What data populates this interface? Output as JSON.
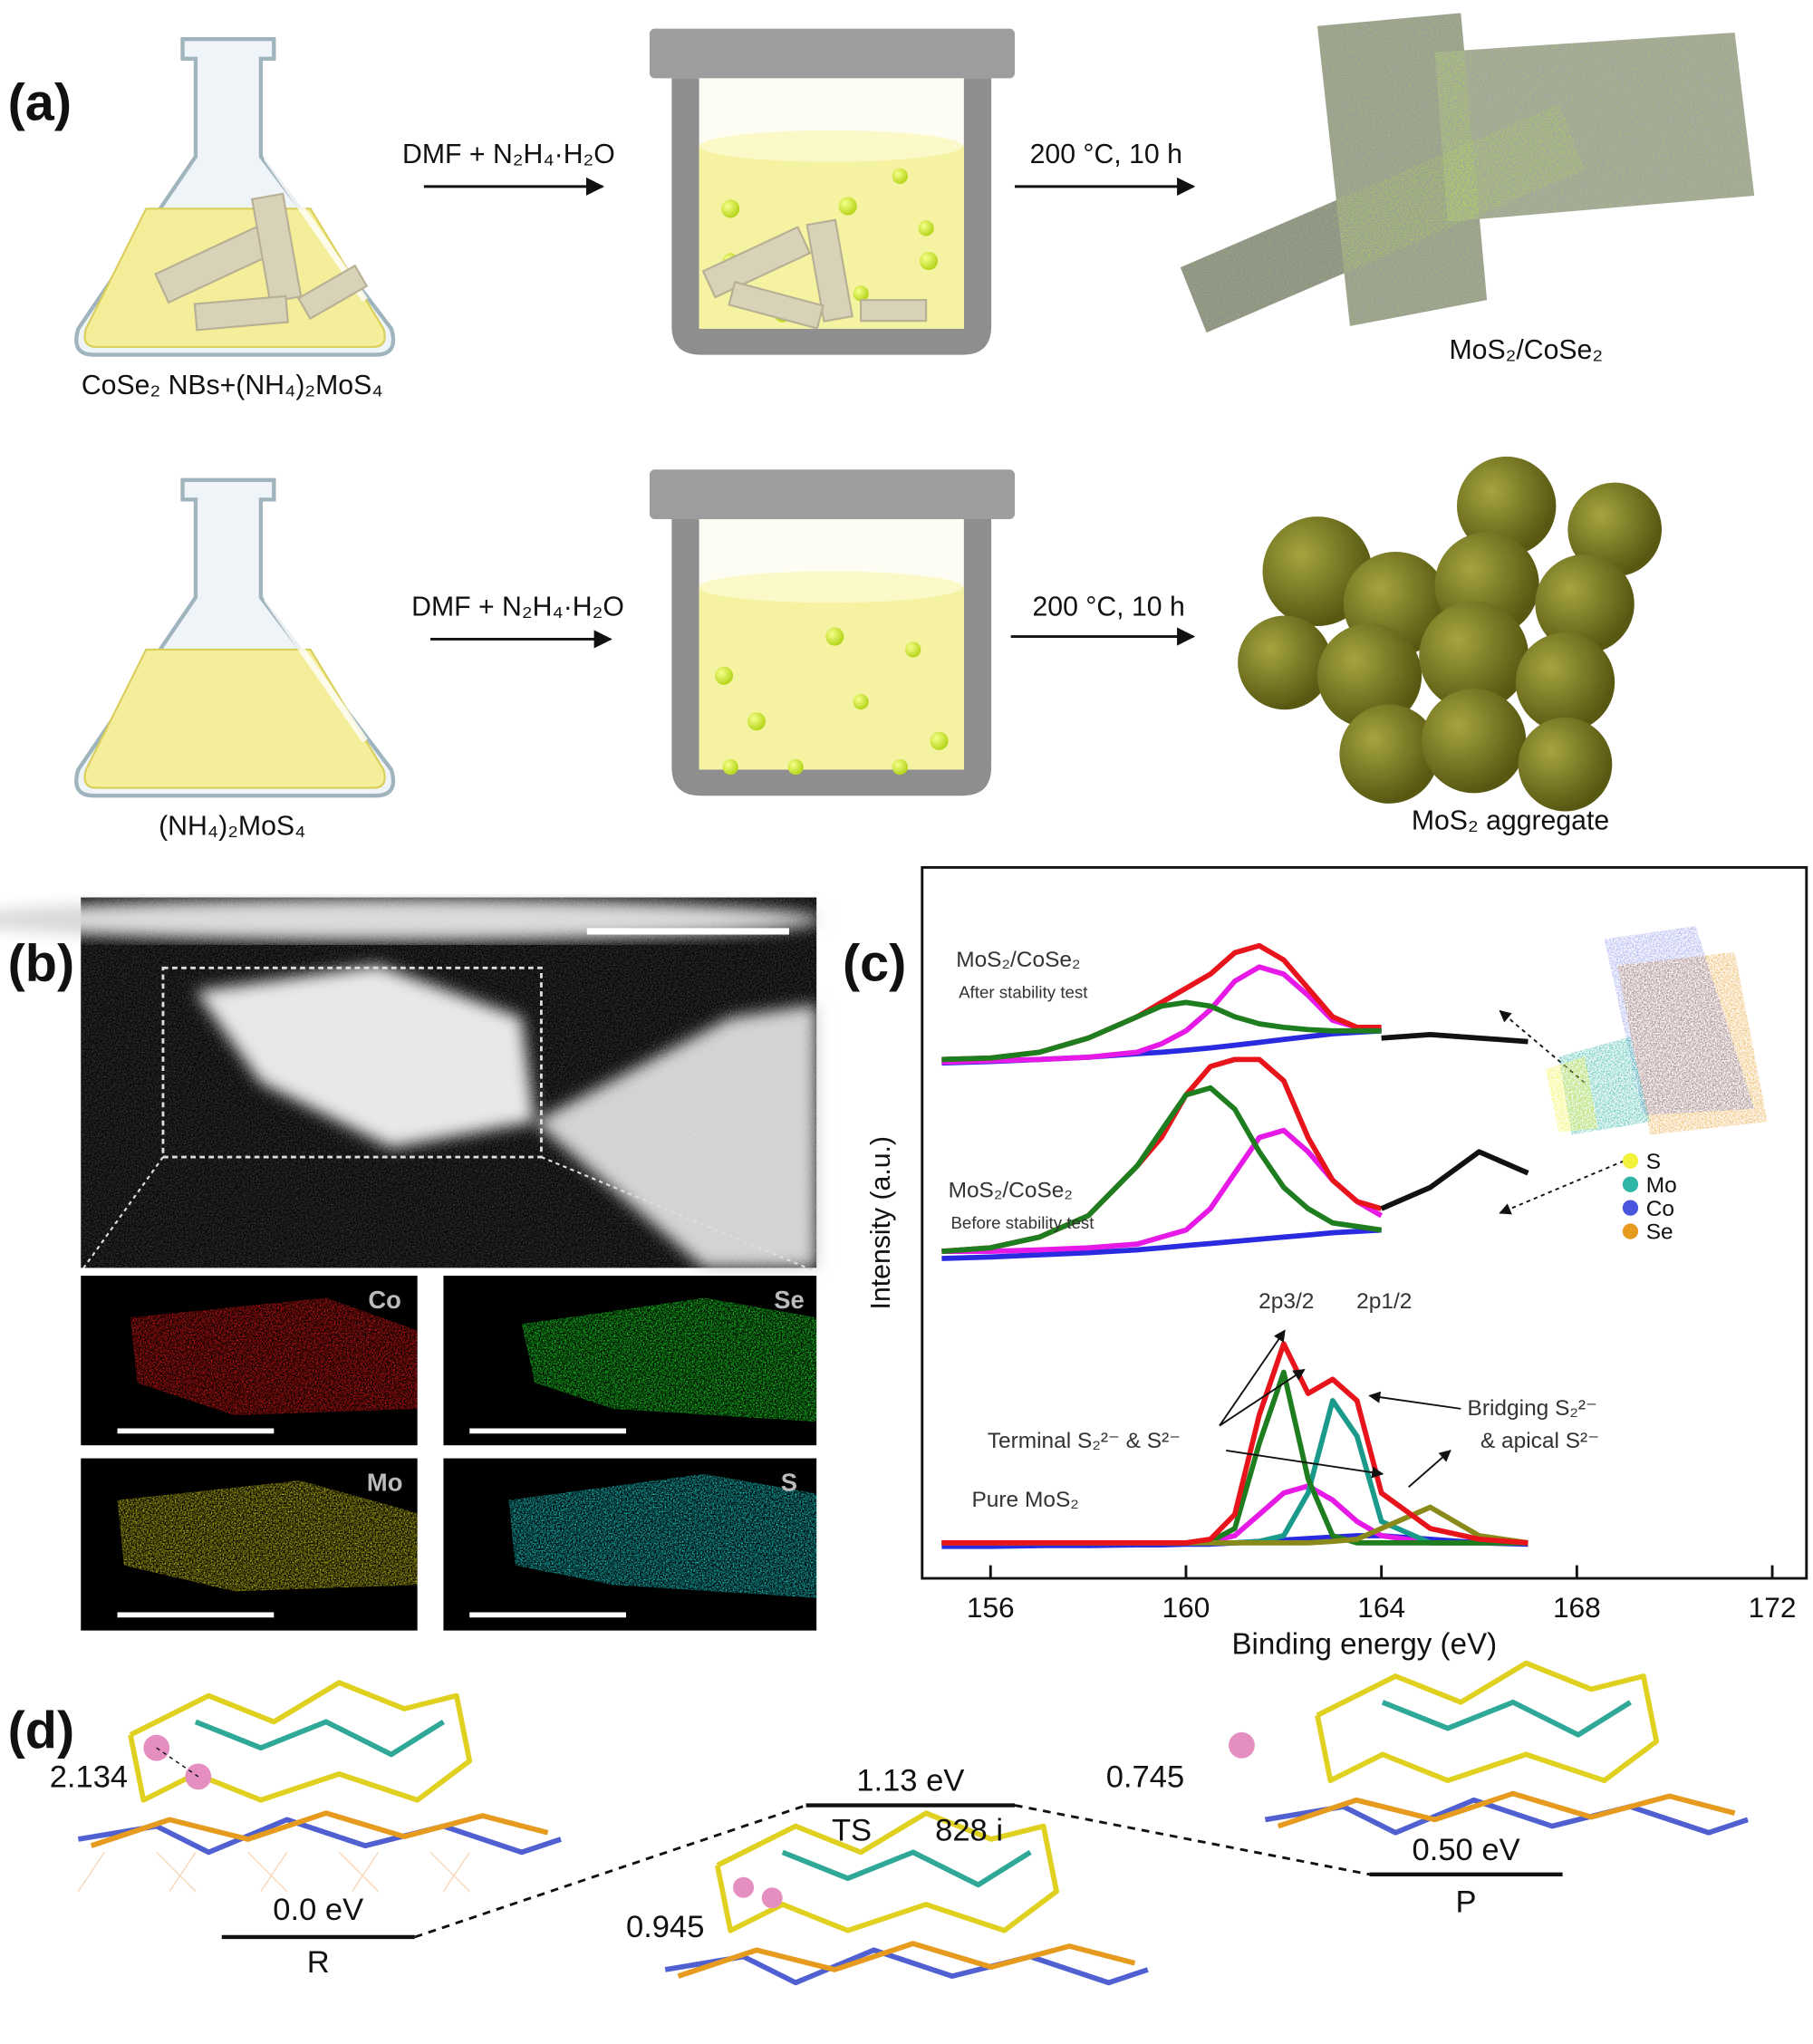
{
  "panel_labels": [
    "(a)",
    "(b)",
    "(c)",
    "(d)"
  ],
  "scheme": {
    "rows": [
      {
        "precursor": "CoSe₂ NBs+(NH₄)₂MoS₄",
        "reagents": "DMF + N₂H₄·H₂O",
        "conditions": "200 °C, 10 h",
        "product": "MoS₂/CoSe₂"
      },
      {
        "precursor": "(NH₄)₂MoS₄",
        "reagents": "DMF + N₂H₄·H₂O",
        "conditions": "200 °C, 10 h",
        "product": "MoS₂ aggregate"
      }
    ]
  },
  "mapping": {
    "elements": [
      "Co",
      "Se",
      "Mo",
      "S"
    ]
  },
  "chart_data": {
    "type": "line",
    "xlabel": "Binding energy (eV)",
    "ylabel": "Intensity (a.u.)",
    "xlim": [
      154.6,
      172.7
    ],
    "xticks": [
      156,
      160,
      164,
      168,
      172
    ],
    "ylim": [
      0,
      10
    ],
    "x": [
      155,
      156,
      157,
      158,
      159,
      159.5,
      160,
      160.5,
      161,
      161.5,
      162,
      162.5,
      163,
      163.5,
      164,
      165,
      166,
      167
    ],
    "series": [
      {
        "color": "#2a2ae0",
        "values": [
          7.25,
          7.27,
          7.3,
          7.33,
          7.38,
          7.4,
          7.43,
          7.46,
          7.5,
          7.54,
          7.58,
          7.62,
          7.66,
          7.68,
          7.7,
          null,
          null,
          null
        ]
      },
      {
        "color": "#e619e6",
        "values": [
          7.26,
          7.28,
          7.3,
          7.33,
          7.4,
          7.52,
          7.7,
          8.0,
          8.4,
          8.6,
          8.5,
          8.2,
          7.85,
          7.75,
          7.7,
          null,
          null,
          null
        ]
      },
      {
        "color": "#e8141b",
        "values": [
          7.3,
          7.32,
          7.4,
          7.6,
          7.9,
          8.1,
          8.3,
          8.5,
          8.8,
          8.9,
          8.7,
          8.3,
          7.9,
          7.75,
          7.75,
          null,
          null,
          null
        ]
      },
      {
        "color": "#1e7d1e",
        "values": [
          7.3,
          7.32,
          7.4,
          7.6,
          7.9,
          8.05,
          8.1,
          8.05,
          7.9,
          7.8,
          7.75,
          7.72,
          7.7,
          7.7,
          7.7,
          null,
          null,
          null
        ]
      },
      {
        "color": "#111111",
        "values": [
          null,
          null,
          null,
          null,
          null,
          null,
          null,
          null,
          null,
          null,
          null,
          null,
          null,
          null,
          7.6,
          7.65,
          7.6,
          7.55
        ]
      },
      {
        "color": "#2a2ae0",
        "values": [
          4.5,
          4.52,
          4.55,
          4.58,
          4.62,
          4.65,
          4.68,
          4.71,
          4.74,
          4.77,
          4.8,
          4.83,
          4.86,
          4.88,
          4.9,
          null,
          null,
          null
        ]
      },
      {
        "color": "#e619e6",
        "values": [
          4.6,
          4.6,
          4.62,
          4.65,
          4.7,
          4.8,
          4.9,
          5.2,
          5.7,
          6.2,
          6.3,
          6.0,
          5.6,
          5.3,
          5.1,
          null,
          null,
          null
        ]
      },
      {
        "color": "#e8141b",
        "values": [
          4.6,
          4.65,
          4.8,
          5.1,
          5.8,
          6.2,
          6.8,
          7.2,
          7.3,
          7.3,
          7.0,
          6.2,
          5.6,
          5.3,
          5.2,
          null,
          null,
          null
        ]
      },
      {
        "color": "#1e7d1e",
        "values": [
          4.6,
          4.65,
          4.8,
          5.1,
          5.8,
          6.3,
          6.8,
          6.9,
          6.6,
          6.0,
          5.5,
          5.2,
          5.0,
          4.95,
          4.9,
          null,
          null,
          null
        ]
      },
      {
        "color": "#111111",
        "values": [
          null,
          null,
          null,
          null,
          null,
          null,
          null,
          null,
          null,
          null,
          null,
          null,
          null,
          null,
          5.2,
          5.5,
          6.0,
          5.7
        ]
      },
      {
        "color": "#2a2ae0",
        "values": [
          0.45,
          0.45,
          0.46,
          0.46,
          0.47,
          0.47,
          0.48,
          0.48,
          0.5,
          0.52,
          0.54,
          0.56,
          0.58,
          0.6,
          0.6,
          0.55,
          0.5,
          0.48
        ]
      },
      {
        "color": "#e619e6",
        "values": [
          0.5,
          0.5,
          0.5,
          0.5,
          0.5,
          0.5,
          0.5,
          0.52,
          0.6,
          0.9,
          1.2,
          1.3,
          1.1,
          0.8,
          0.6,
          0.5,
          0.5,
          0.5
        ]
      },
      {
        "color": "#1a9a8a",
        "values": [
          0.5,
          0.5,
          0.5,
          0.5,
          0.5,
          0.5,
          0.5,
          0.5,
          0.5,
          0.52,
          0.6,
          1.2,
          2.5,
          2.0,
          0.8,
          0.5,
          0.5,
          0.5
        ]
      },
      {
        "color": "#1e7d1e",
        "values": [
          0.5,
          0.5,
          0.5,
          0.5,
          0.5,
          0.5,
          0.5,
          0.52,
          0.7,
          1.9,
          2.9,
          1.4,
          0.6,
          0.5,
          0.5,
          0.5,
          0.5,
          0.5
        ]
      },
      {
        "color": "#8a8a1a",
        "values": [
          0.5,
          0.5,
          0.5,
          0.5,
          0.5,
          0.5,
          0.5,
          0.5,
          0.5,
          0.5,
          0.5,
          0.5,
          0.52,
          0.55,
          0.7,
          1.0,
          0.6,
          0.5
        ]
      },
      {
        "color": "#e8141b",
        "values": [
          0.5,
          0.5,
          0.5,
          0.5,
          0.5,
          0.5,
          0.5,
          0.55,
          0.9,
          2.3,
          3.3,
          2.6,
          2.8,
          2.5,
          1.2,
          0.7,
          0.55,
          0.5
        ]
      }
    ],
    "annotations": {
      "after_label": "MoS₂/CoSe₂",
      "after_note": "After stability test",
      "before_label": "MoS₂/CoSe₂",
      "before_note": "Before stability test",
      "pure_label": "Pure MoS₂",
      "peak_1": "2p3/2",
      "peak_2": "2p1/2",
      "terminal": "Terminal S₂²⁻ & S²⁻",
      "bridging_1": "Bridging S₂²⁻",
      "bridging_2": "& apical S²⁻"
    },
    "atom_key": [
      {
        "label": "S",
        "color": "#f2f23c"
      },
      {
        "label": "Mo",
        "color": "#2fb5a5"
      },
      {
        "label": "Co",
        "color": "#4a55e0"
      },
      {
        "label": "Se",
        "color": "#e69a1e"
      }
    ]
  },
  "dft": {
    "R": {
      "distance": "2.134",
      "energy": "0.0 eV",
      "label": "R"
    },
    "TS": {
      "distance": "0.945",
      "energy": "1.13 eV",
      "label": "TS",
      "frequency": "828 i"
    },
    "P": {
      "distance": "0.745",
      "energy": "0.50 eV",
      "label": "P"
    }
  }
}
